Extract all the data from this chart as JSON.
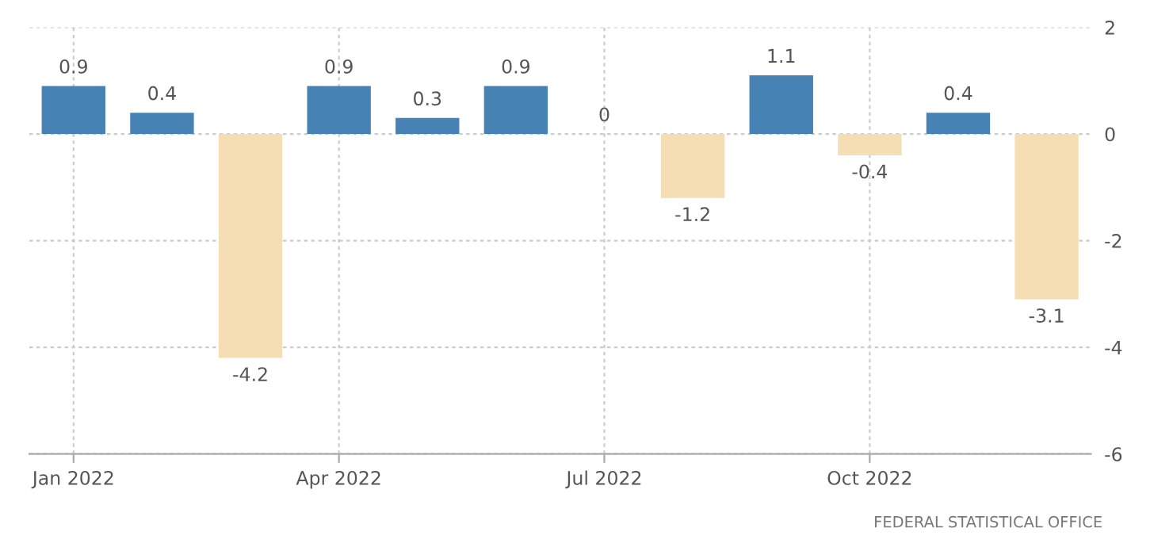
{
  "chart_data": {
    "type": "bar",
    "categories": [
      "Jan 2022",
      null,
      null,
      "Apr 2022",
      null,
      null,
      "Jul 2022",
      null,
      null,
      "Oct 2022",
      null,
      null
    ],
    "values": [
      0.9,
      0.4,
      -4.2,
      0.9,
      0.3,
      0.9,
      0,
      -1.2,
      1.1,
      -0.4,
      0.4,
      -3.1
    ],
    "colors": [
      "#4682b4",
      "#4682b4",
      "#f5deb3",
      "#4682b4",
      "#4682b4",
      "#4682b4",
      "#4682b4",
      "#f5deb3",
      "#4682b4",
      "#f5deb3",
      "#4682b4",
      "#f5deb3"
    ],
    "ylim": [
      -6,
      2
    ],
    "yticks": [
      -6,
      -4,
      -2,
      0,
      2
    ],
    "grid": true,
    "data_labels": true,
    "annotations": [
      "FEDERAL STATISTICAL OFFICE"
    ]
  }
}
